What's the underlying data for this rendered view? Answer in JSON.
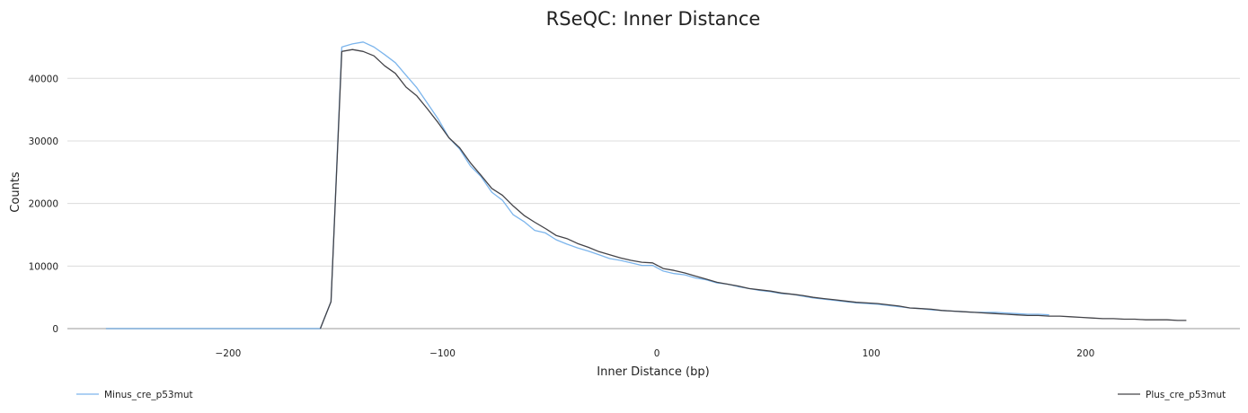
{
  "chart_data": {
    "type": "line",
    "title": "RSeQC: Inner Distance",
    "xlabel": "Inner Distance (bp)",
    "ylabel": "Counts",
    "xlim": [
      -275,
      272
    ],
    "ylim": [
      0,
      47500
    ],
    "xticks": [
      -200,
      -100,
      0,
      100,
      200
    ],
    "xtick_labels": [
      "−200",
      "−100",
      "0",
      "100",
      "200"
    ],
    "yticks": [
      0,
      10000,
      20000,
      30000,
      40000
    ],
    "ytick_labels": [
      "0",
      "10000",
      "20000",
      "30000",
      "40000"
    ],
    "grid": "horizontal",
    "legend_placement": "bottom",
    "series": [
      {
        "name": "Minus_cre_p53mut",
        "color": "#7cb5ec",
        "x": [
          -257,
          -250,
          -240,
          -230,
          -220,
          -210,
          -200,
          -190,
          -180,
          -170,
          -162,
          -157,
          -152,
          -147,
          -142,
          -137,
          -132,
          -127,
          -122,
          -117,
          -112,
          -107,
          -102,
          -97,
          -92,
          -87,
          -82,
          -77,
          -72,
          -67,
          -62,
          -57,
          -52,
          -47,
          -42,
          -37,
          -32,
          -27,
          -22,
          -17,
          -12,
          -7,
          -2,
          3,
          8,
          13,
          18,
          23,
          28,
          33,
          38,
          43,
          48,
          53,
          58,
          63,
          68,
          73,
          78,
          83,
          88,
          93,
          98,
          103,
          108,
          113,
          118,
          123,
          128,
          133,
          138,
          143,
          148,
          153,
          158,
          163,
          168,
          173,
          178,
          183
        ],
        "values": [
          0,
          0,
          0,
          0,
          0,
          0,
          0,
          0,
          0,
          0,
          0,
          0,
          4300,
          45000,
          45500,
          45800,
          45000,
          43800,
          42500,
          40500,
          38500,
          36000,
          33500,
          30500,
          28700,
          26000,
          24300,
          21800,
          20500,
          18200,
          17100,
          15700,
          15300,
          14200,
          13500,
          12900,
          12400,
          11800,
          11200,
          10900,
          10500,
          10100,
          10100,
          9200,
          8800,
          8600,
          8100,
          7800,
          7300,
          7100,
          6700,
          6400,
          6100,
          5900,
          5600,
          5500,
          5200,
          4900,
          4700,
          4500,
          4300,
          4100,
          4000,
          3900,
          3700,
          3500,
          3300,
          3200,
          3000,
          2900,
          2800,
          2700,
          2600,
          2600,
          2600,
          2500,
          2400,
          2300,
          2300,
          2200
        ]
      },
      {
        "name": "Plus_cre_p53mut",
        "color": "#434348",
        "x": [
          -157,
          -152,
          -147,
          -142,
          -137,
          -132,
          -127,
          -122,
          -117,
          -112,
          -107,
          -102,
          -97,
          -92,
          -87,
          -82,
          -77,
          -72,
          -67,
          -62,
          -57,
          -52,
          -47,
          -42,
          -37,
          -32,
          -27,
          -22,
          -17,
          -12,
          -7,
          -2,
          3,
          8,
          13,
          18,
          23,
          28,
          33,
          38,
          43,
          48,
          53,
          58,
          63,
          68,
          73,
          78,
          83,
          88,
          93,
          98,
          103,
          108,
          113,
          118,
          123,
          128,
          133,
          138,
          143,
          148,
          153,
          158,
          163,
          168,
          173,
          178,
          183,
          188,
          193,
          198,
          203,
          208,
          213,
          218,
          223,
          228,
          233,
          238,
          243,
          247
        ],
        "values": [
          0,
          4300,
          44300,
          44600,
          44300,
          43600,
          42000,
          40800,
          38600,
          37200,
          35100,
          32900,
          30500,
          28900,
          26500,
          24500,
          22400,
          21300,
          19600,
          18100,
          17000,
          16000,
          14900,
          14400,
          13600,
          13000,
          12300,
          11800,
          11300,
          10900,
          10600,
          10500,
          9600,
          9300,
          8900,
          8400,
          7900,
          7400,
          7100,
          6800,
          6400,
          6200,
          6000,
          5700,
          5500,
          5300,
          5000,
          4800,
          4600,
          4400,
          4200,
          4100,
          4000,
          3800,
          3600,
          3300,
          3200,
          3100,
          2900,
          2800,
          2700,
          2600,
          2500,
          2400,
          2300,
          2200,
          2100,
          2100,
          2000,
          2000,
          1900,
          1800,
          1700,
          1600,
          1600,
          1500,
          1500,
          1400,
          1400,
          1400,
          1300,
          1300
        ]
      }
    ]
  }
}
